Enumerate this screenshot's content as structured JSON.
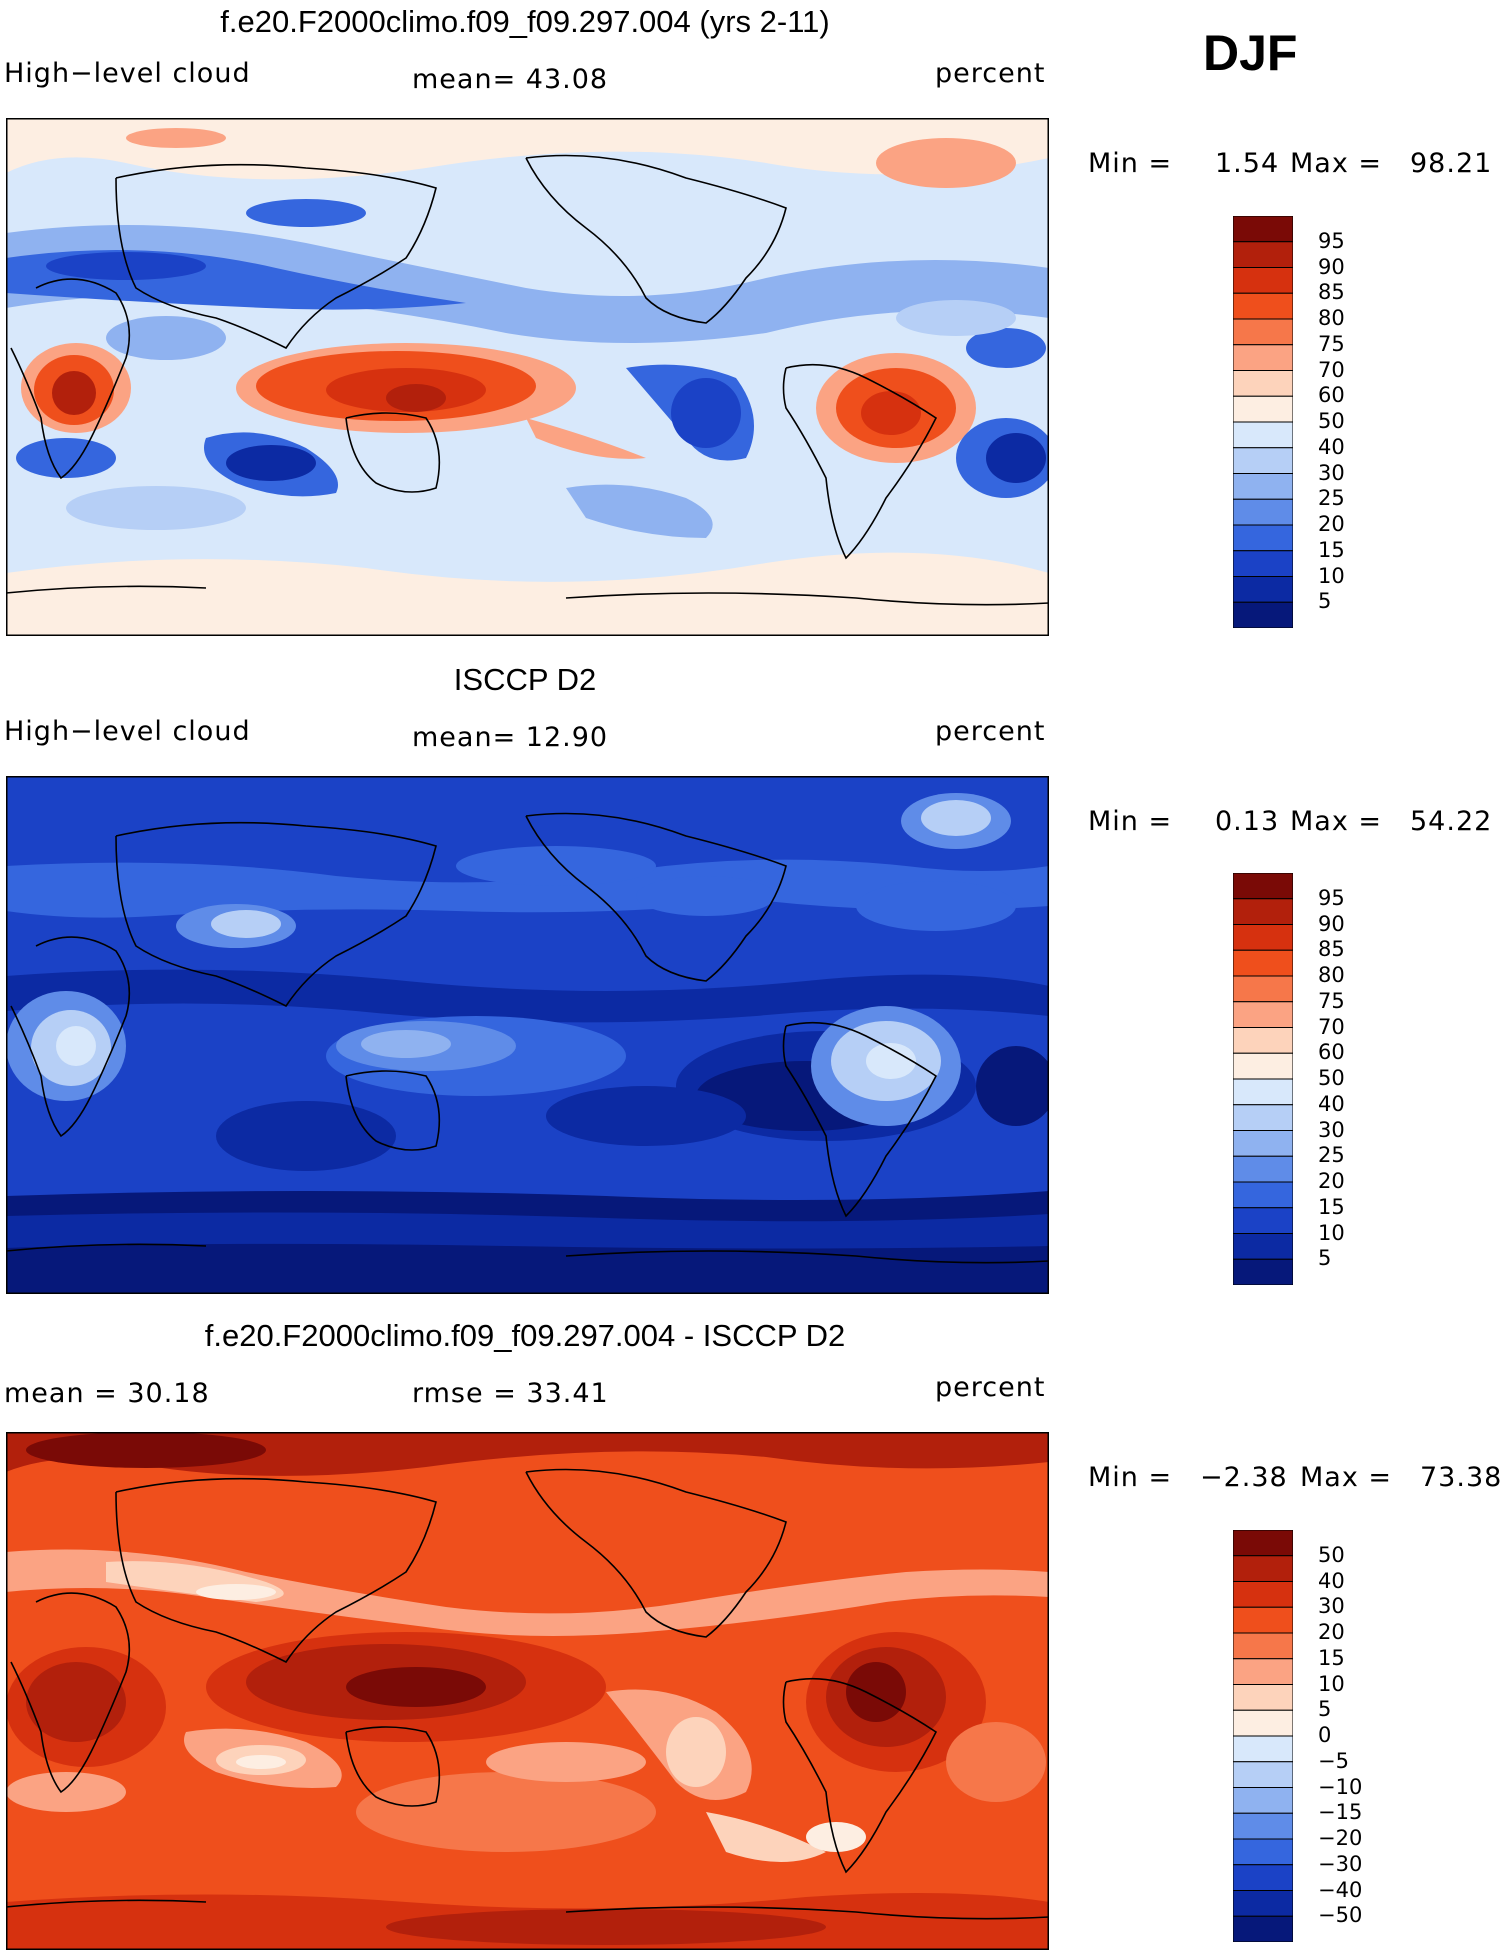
{
  "season": "DJF",
  "panels": [
    {
      "title": "f.e20.F2000climo.f09_f09.297.004 (yrs 2-11)",
      "left_label": "High−level cloud",
      "center_label": "mean=   43.08",
      "right_label": "percent",
      "min_label": "Min =",
      "min_value": "1.54",
      "max_label": "Max =",
      "max_value": "98.21",
      "colorbar": {
        "labels": [
          "95",
          "90",
          "85",
          "80",
          "75",
          "70",
          "60",
          "50",
          "40",
          "30",
          "25",
          "20",
          "15",
          "10",
          "5"
        ],
        "colors": [
          "#7a0a06",
          "#b2200c",
          "#d6310f",
          "#ef4f1c",
          "#f6774a",
          "#fba383",
          "#fdd3bb",
          "#fdeee2",
          "#d8e8fb",
          "#b6cff6",
          "#8fb2f0",
          "#5f8ce8",
          "#3566de",
          "#1b42c6",
          "#0c2aa3",
          "#06187a"
        ],
        "orientation": "high-at-top"
      }
    },
    {
      "title": "ISCCP D2",
      "left_label": "High−level cloud",
      "center_label": "mean=   12.90",
      "right_label": "percent",
      "min_label": "Min =",
      "min_value": "0.13",
      "max_label": "Max =",
      "max_value": "54.22",
      "colorbar": {
        "labels": [
          "95",
          "90",
          "85",
          "80",
          "75",
          "70",
          "60",
          "50",
          "40",
          "30",
          "25",
          "20",
          "15",
          "10",
          "5"
        ],
        "colors": [
          "#7a0a06",
          "#b2200c",
          "#d6310f",
          "#ef4f1c",
          "#f6774a",
          "#fba383",
          "#fdd3bb",
          "#fdeee2",
          "#d8e8fb",
          "#b6cff6",
          "#8fb2f0",
          "#5f8ce8",
          "#3566de",
          "#1b42c6",
          "#0c2aa3",
          "#06187a"
        ],
        "orientation": "high-at-top"
      }
    },
    {
      "title": "f.e20.F2000climo.f09_f09.297.004 - ISCCP D2",
      "left_label": "mean =   30.18",
      "center_label": "rmse =   33.41",
      "right_label": "percent",
      "min_label": "Min =",
      "min_value": "−2.38",
      "max_label": "Max =",
      "max_value": "73.38",
      "colorbar": {
        "labels": [
          "50",
          "40",
          "30",
          "20",
          "15",
          "10",
          "5",
          "0",
          "−5",
          "−10",
          "−15",
          "−20",
          "−30",
          "−40",
          "−50"
        ],
        "colors": [
          "#7a0a06",
          "#b2200c",
          "#d6310f",
          "#ef4f1c",
          "#f6774a",
          "#fba383",
          "#fdd3bb",
          "#fdeee2",
          "#d8e8fb",
          "#b6cff6",
          "#8fb2f0",
          "#5f8ce8",
          "#3566de",
          "#1b42c6",
          "#0c2aa3",
          "#06187a"
        ],
        "orientation": "high-at-top"
      }
    }
  ],
  "field_colors": {
    "panel1_background": "#d8e8fb",
    "panel2_background": "#1b42c6",
    "panel3_background": "#ef4f1c",
    "coastline": "#000000"
  }
}
